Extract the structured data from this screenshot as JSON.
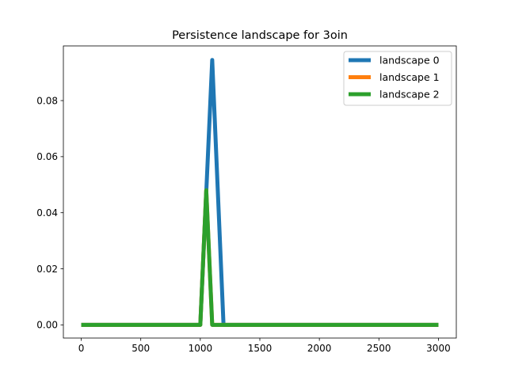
{
  "chart_data": {
    "type": "line",
    "title": "Persistence landscape for 3oin",
    "xlabel": "",
    "ylabel": "",
    "xlim": [
      -150,
      3150
    ],
    "ylim": [
      -0.0047,
      0.0995
    ],
    "x_ticks": [
      0,
      500,
      1000,
      1500,
      2000,
      2500,
      3000
    ],
    "x_tick_labels": [
      "0",
      "500",
      "1000",
      "1500",
      "2000",
      "2500",
      "3000"
    ],
    "y_ticks": [
      0.0,
      0.02,
      0.04,
      0.06,
      0.08
    ],
    "y_tick_labels": [
      "0.00",
      "0.02",
      "0.04",
      "0.06",
      "0.08"
    ],
    "grid": false,
    "legend_position": "top-right",
    "series": [
      {
        "name": "landscape 0",
        "color": "#1f77b4",
        "x": [
          0,
          1000,
          1100,
          1195,
          1200,
          3000
        ],
        "y": [
          0,
          0,
          0.0945,
          0,
          0,
          0
        ]
      },
      {
        "name": "landscape 1",
        "color": "#ff7f0e",
        "x": [
          0,
          1000,
          1050,
          1100,
          3000
        ],
        "y": [
          0,
          0,
          0.048,
          0,
          0
        ]
      },
      {
        "name": "landscape 2",
        "color": "#2ca02c",
        "x": [
          0,
          1000,
          1050,
          1100,
          3000
        ],
        "y": [
          0,
          0,
          0.048,
          0,
          0
        ]
      }
    ]
  }
}
